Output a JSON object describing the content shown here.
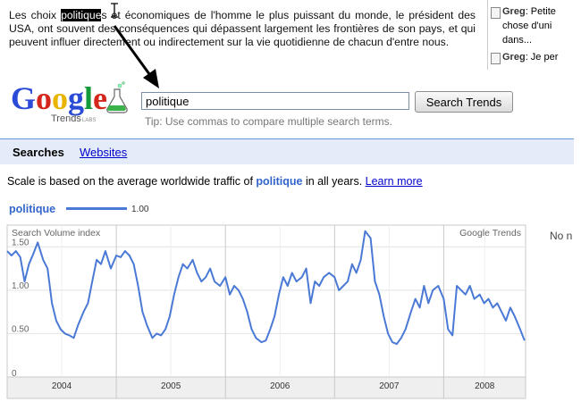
{
  "article": {
    "before": "Les choix ",
    "highlight": "politique",
    "after": "s et économiques de l'homme le plus puissant du monde, le président des USA, ont souvent des conséquences qui dépassent largement les frontières de son pays, et qui peuvent influer directement ou indirectement sur la vie quotidienne de chacun d'entre nous."
  },
  "comments": [
    {
      "author": "Greg",
      "text": ": Petite"
    },
    {
      "author": "",
      "text": "chose d'uni"
    },
    {
      "author": "",
      "text": "dans..."
    },
    {
      "author": "Greg",
      "text": ": Je per"
    }
  ],
  "logo": {
    "text": "Google",
    "sub": "Trends",
    "labs": "LABS"
  },
  "search": {
    "value": "politique",
    "button": "Search Trends",
    "tip": "Tip: Use commas to compare multiple search terms."
  },
  "tabs": {
    "searches": "Searches",
    "websites": "Websites"
  },
  "scale": {
    "prefix": "Scale is based on the average worldwide traffic of ",
    "term": "politique",
    "suffix": " in all years. ",
    "link": "Learn more"
  },
  "legend": {
    "term": "politique",
    "value": "1.00"
  },
  "side_note": "No n",
  "colors": {
    "series": "#4a79d6",
    "tab_bg": "#e5ecf9",
    "link": "#0000cc"
  },
  "chart_data": {
    "type": "line",
    "title": "Search Volume index",
    "source_label": "Google Trends",
    "years": [
      "2004",
      "2005",
      "2006",
      "2007",
      "2008"
    ],
    "x_range": [
      2004.0,
      2008.75
    ],
    "ylim": [
      0,
      1.75
    ],
    "yticks": [
      "0",
      "0.50",
      "1.00",
      "1.50"
    ],
    "grid": true,
    "series": [
      {
        "name": "politique",
        "x": [
          2004.0,
          2004.04,
          2004.08,
          2004.12,
          2004.16,
          2004.2,
          2004.24,
          2004.28,
          2004.33,
          2004.37,
          2004.41,
          2004.45,
          2004.49,
          2004.53,
          2004.57,
          2004.61,
          2004.65,
          2004.7,
          2004.74,
          2004.78,
          2004.82,
          2004.86,
          2004.9,
          2004.95,
          2005.0,
          2005.04,
          2005.08,
          2005.12,
          2005.16,
          2005.2,
          2005.24,
          2005.28,
          2005.33,
          2005.37,
          2005.41,
          2005.45,
          2005.49,
          2005.53,
          2005.57,
          2005.61,
          2005.65,
          2005.7,
          2005.74,
          2005.78,
          2005.82,
          2005.86,
          2005.9,
          2005.95,
          2006.0,
          2006.04,
          2006.08,
          2006.12,
          2006.16,
          2006.2,
          2006.24,
          2006.28,
          2006.33,
          2006.37,
          2006.41,
          2006.45,
          2006.49,
          2006.53,
          2006.57,
          2006.61,
          2006.65,
          2006.7,
          2006.74,
          2006.78,
          2006.82,
          2006.86,
          2006.9,
          2006.95,
          2007.0,
          2007.04,
          2007.08,
          2007.12,
          2007.16,
          2007.2,
          2007.24,
          2007.28,
          2007.33,
          2007.37,
          2007.41,
          2007.45,
          2007.49,
          2007.53,
          2007.57,
          2007.61,
          2007.65,
          2007.7,
          2007.74,
          2007.78,
          2007.82,
          2007.86,
          2007.9,
          2007.95,
          2008.0,
          2008.04,
          2008.08,
          2008.12,
          2008.16,
          2008.2,
          2008.24,
          2008.28,
          2008.33,
          2008.37,
          2008.41,
          2008.45,
          2008.49,
          2008.53,
          2008.57,
          2008.61,
          2008.65,
          2008.7,
          2008.74
        ],
        "values": [
          1.45,
          1.4,
          1.45,
          1.38,
          1.1,
          1.3,
          1.42,
          1.55,
          1.35,
          1.25,
          0.85,
          0.65,
          0.55,
          0.5,
          0.48,
          0.45,
          0.6,
          0.75,
          0.85,
          1.1,
          1.35,
          1.3,
          1.45,
          1.25,
          1.4,
          1.38,
          1.45,
          1.4,
          1.3,
          1.05,
          0.75,
          0.6,
          0.45,
          0.5,
          0.48,
          0.55,
          0.7,
          0.95,
          1.15,
          1.3,
          1.25,
          1.35,
          1.2,
          1.1,
          1.15,
          1.25,
          1.1,
          1.05,
          1.15,
          0.95,
          1.05,
          1.0,
          0.9,
          0.75,
          0.55,
          0.45,
          0.4,
          0.42,
          0.55,
          0.7,
          0.95,
          1.15,
          1.05,
          1.2,
          1.1,
          1.15,
          1.25,
          0.85,
          1.1,
          1.05,
          1.15,
          1.2,
          1.15,
          1.0,
          1.05,
          1.1,
          1.3,
          1.2,
          1.35,
          1.68,
          1.6,
          1.1,
          0.95,
          0.7,
          0.5,
          0.4,
          0.38,
          0.45,
          0.55,
          0.75,
          0.9,
          0.8,
          1.05,
          0.85,
          1.0,
          1.05,
          0.9,
          0.55,
          0.48,
          1.05,
          1.0,
          0.95,
          1.05,
          0.9,
          0.95,
          0.85,
          0.9,
          0.8,
          0.85,
          0.75,
          0.65,
          0.8,
          0.7,
          0.55,
          0.42
        ]
      }
    ]
  }
}
